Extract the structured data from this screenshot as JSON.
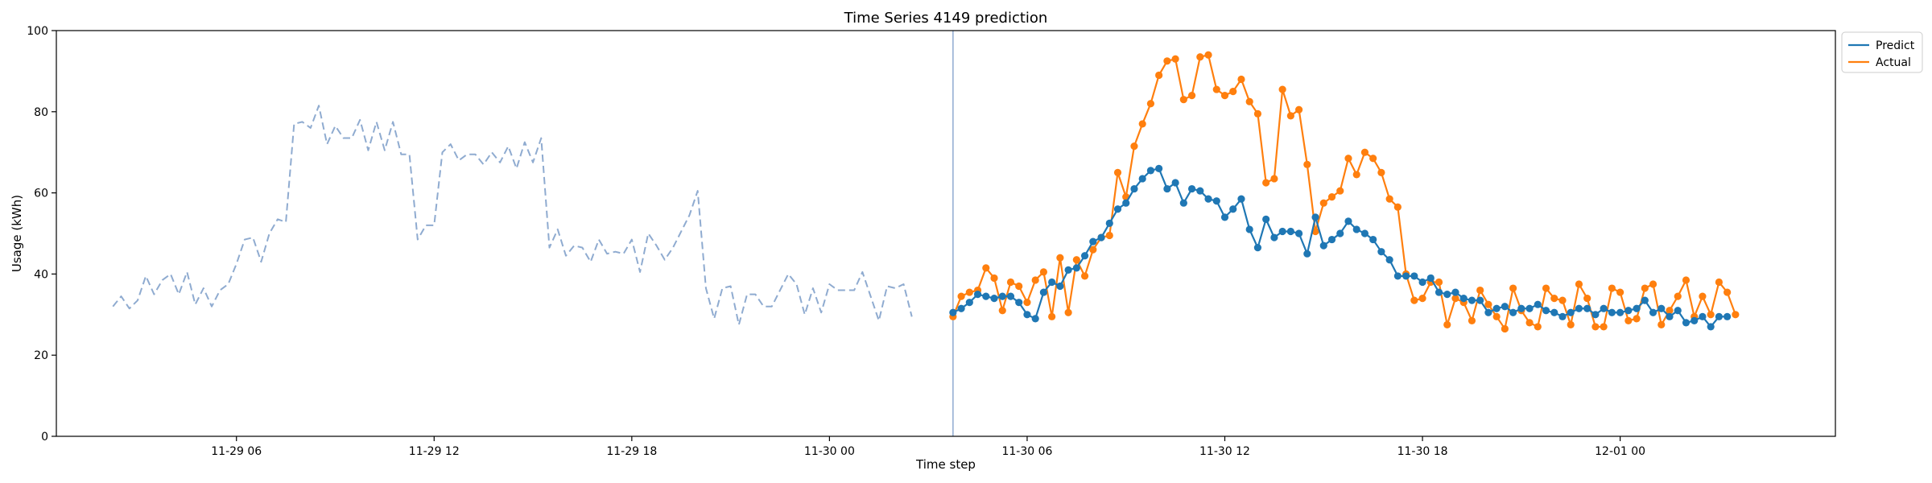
{
  "chart_data": {
    "type": "line",
    "title": "Time Series 4149 prediction",
    "xlabel": "Time step",
    "ylabel": "Usage (kWh)",
    "ylim": [
      0,
      100
    ],
    "yticks": [
      0,
      20,
      40,
      60,
      80,
      100
    ],
    "xlim": [
      "2024-11-29 00:32",
      "2024-12-01 06:32"
    ],
    "xticks": [
      {
        "at": "2024-11-29 06:00",
        "label": "11-29 06"
      },
      {
        "at": "2024-11-29 12:00",
        "label": "11-29 12"
      },
      {
        "at": "2024-11-29 18:00",
        "label": "11-29 18"
      },
      {
        "at": "2024-11-30 00:00",
        "label": "11-30 00"
      },
      {
        "at": "2024-11-30 06:00",
        "label": "11-30 06"
      },
      {
        "at": "2024-11-30 12:00",
        "label": "11-30 12"
      },
      {
        "at": "2024-11-30 18:00",
        "label": "11-30 18"
      },
      {
        "at": "2024-12-01 00:00",
        "label": "12-01 00"
      }
    ],
    "grid": false,
    "legend_position": "outside-top-right",
    "forecast_start": "2024-11-30 03:45",
    "history": {
      "start": "2024-11-29 02:15",
      "step_minutes": 15,
      "style": "dashed",
      "color": "#8fabd0",
      "values": [
        32,
        34.5,
        31.5,
        33.5,
        39.5,
        35,
        38.5,
        40,
        35,
        40.5,
        32.5,
        36.5,
        32,
        36,
        37.5,
        42.5,
        48.5,
        49,
        43,
        50,
        53.5,
        52.8,
        77,
        77.5,
        76,
        81.5,
        72,
        76.5,
        73.5,
        73.5,
        78,
        70.5,
        77.5,
        70.5,
        77.5,
        69.5,
        69.5,
        48.5,
        52,
        52,
        70,
        72,
        68,
        69.5,
        69.5,
        67,
        70,
        67.5,
        71.5,
        66,
        72.5,
        67.5,
        73.5,
        46.5,
        51,
        44.5,
        47,
        46.5,
        43,
        48.5,
        45,
        45.5,
        45,
        48.5,
        40.5,
        50,
        47,
        43.5,
        46.5,
        50.5,
        54.5,
        60.5,
        36.5,
        29,
        36.5,
        37,
        27.5,
        35,
        35,
        32,
        32,
        36,
        40,
        37.5,
        30,
        36.5,
        30.5,
        37.5,
        36,
        36,
        36,
        40.5,
        34.5,
        28.5,
        37,
        36.5,
        37.5,
        29.5
      ]
    },
    "series": [
      {
        "name": "Predict",
        "color": "#1f77b4",
        "start": "2024-11-30 03:45",
        "step_minutes": 15,
        "values": [
          30.5,
          31.5,
          33,
          35,
          34.5,
          34,
          34.5,
          34.5,
          33,
          30,
          29,
          35.5,
          38,
          37,
          41,
          41.5,
          44.5,
          48,
          49,
          52.5,
          56,
          57.5,
          61,
          63.5,
          65.5,
          66,
          61,
          62.5,
          57.5,
          61,
          60.5,
          58.5,
          58,
          54,
          56,
          58.5,
          51,
          46.5,
          53.5,
          49,
          50.5,
          50.5,
          50,
          45,
          54,
          47,
          48.5,
          50,
          53,
          51,
          50,
          48.5,
          45.5,
          43.5,
          39.5,
          39.5,
          39.5,
          38,
          39,
          35.5,
          35,
          35.5,
          34,
          33.5,
          33.5,
          30.5,
          31.5,
          32,
          30.5,
          31.5,
          31.5,
          32.5,
          31,
          30.5,
          29.5,
          30.5,
          31.5,
          31.5,
          30,
          31.5,
          30.5,
          30.5,
          31,
          31.5,
          33.5,
          30.5,
          31.5,
          29.5,
          31,
          28,
          28.5,
          29.5,
          27,
          29.5,
          29.5
        ]
      },
      {
        "name": "Actual",
        "color": "#ff7f0e",
        "start": "2024-11-30 03:45",
        "step_minutes": 15,
        "values": [
          29.5,
          34.5,
          35.5,
          36,
          41.5,
          39,
          31,
          38,
          37,
          33,
          38.5,
          40.5,
          29.5,
          44,
          30.5,
          43.5,
          39.5,
          46,
          49,
          49.5,
          65,
          59,
          71.5,
          77,
          82,
          89,
          92.5,
          93,
          83,
          84,
          93.5,
          94,
          85.5,
          84,
          85,
          88,
          82.5,
          79.5,
          62.5,
          63.5,
          85.5,
          79,
          80.5,
          67,
          50.5,
          57.5,
          59,
          60.5,
          68.5,
          64.5,
          70,
          68.5,
          65,
          58.5,
          56.5,
          40,
          33.5,
          34,
          38,
          38,
          27.5,
          34,
          33,
          28.5,
          36,
          32.5,
          29.5,
          26.5,
          36.5,
          31,
          28,
          27,
          36.5,
          34,
          33.5,
          27.5,
          37.5,
          34,
          27,
          27,
          36.5,
          35.5,
          28.5,
          29,
          36.5,
          37.5,
          27.5,
          31,
          34.5,
          38.5,
          29.5,
          34.5,
          30,
          38,
          35.5,
          30
        ]
      }
    ]
  }
}
